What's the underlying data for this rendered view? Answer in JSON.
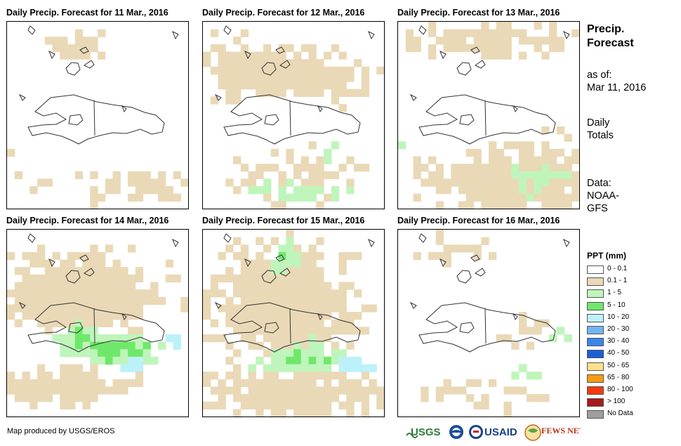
{
  "panels": [
    {
      "title": "Daily Precip. Forecast for 11 Mar., 2016"
    },
    {
      "title": "Daily Precip. Forecast for 12 Mar., 2016"
    },
    {
      "title": "Daily Precip. Forecast for 13 Mar., 2016"
    },
    {
      "title": "Daily Precip. Forecast for 14 Mar., 2016"
    },
    {
      "title": "Daily Precip. Forecast for 15 Mar., 2016"
    },
    {
      "title": "Daily Precip. Forecast for 16 Mar., 2016"
    }
  ],
  "side": {
    "title_line1": "Precip.",
    "title_line2": "Forecast",
    "asof_label": "as of:",
    "asof_date": "Mar 11, 2016",
    "totals_line1": "Daily",
    "totals_line2": "Totals",
    "data_line1": "Data:",
    "data_line2": "NOAA-",
    "data_line3": "GFS"
  },
  "legend": {
    "title": "PPT (mm)",
    "items": [
      {
        "label": "0 - 0.1",
        "color": "#ffffff"
      },
      {
        "label": "0.1 - 1",
        "color": "#ead9b7"
      },
      {
        "label": "1 - 5",
        "color": "#bff5bb"
      },
      {
        "label": "5 - 10",
        "color": "#6fe86a"
      },
      {
        "label": "10 - 20",
        "color": "#bdf1fa"
      },
      {
        "label": "20 - 30",
        "color": "#73b4f2"
      },
      {
        "label": "30 - 40",
        "color": "#3a86ea"
      },
      {
        "label": "40 - 50",
        "color": "#1b5fd6"
      },
      {
        "label": "50 - 65",
        "color": "#fbe28a"
      },
      {
        "label": "65 - 80",
        "color": "#f79a12"
      },
      {
        "label": "80 - 100",
        "color": "#f23a0e"
      },
      {
        "label": "> 100",
        "color": "#a8191a"
      },
      {
        "label": "No Data",
        "color": "#9e9e9e"
      }
    ]
  },
  "credit": "Map produced by USGS/EROS",
  "logos": {
    "usgs": "USGS",
    "usaid": "USAID",
    "fewsnet": "FEWS NET"
  }
}
